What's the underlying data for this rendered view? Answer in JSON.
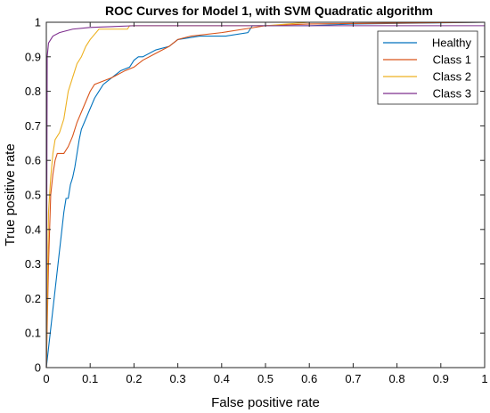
{
  "chart_data": {
    "type": "line",
    "title": "ROC Curves for Model 1, with SVM Quadratic algorithm",
    "xlabel": "False positive rate",
    "ylabel": "True positive rate",
    "xlim": [
      0,
      1
    ],
    "ylim": [
      0,
      1
    ],
    "x_ticks": [
      "0",
      "0.1",
      "0.2",
      "0.3",
      "0.4",
      "0.5",
      "0.6",
      "0.7",
      "0.8",
      "0.9",
      "1"
    ],
    "y_ticks": [
      "0",
      "0.1",
      "0.2",
      "0.3",
      "0.4",
      "0.5",
      "0.6",
      "0.7",
      "0.8",
      "0.9",
      "1"
    ],
    "grid": false,
    "legend_position": "top-right",
    "series": [
      {
        "name": "Healthy",
        "color": "#0072BD",
        "points": [
          [
            0,
            0
          ],
          [
            0.04,
            0.45
          ],
          [
            0.045,
            0.49
          ],
          [
            0.05,
            0.49
          ],
          [
            0.055,
            0.53
          ],
          [
            0.06,
            0.55
          ],
          [
            0.065,
            0.58
          ],
          [
            0.07,
            0.62
          ],
          [
            0.075,
            0.66
          ],
          [
            0.08,
            0.69
          ],
          [
            0.09,
            0.72
          ],
          [
            0.1,
            0.75
          ],
          [
            0.11,
            0.78
          ],
          [
            0.12,
            0.8
          ],
          [
            0.13,
            0.82
          ],
          [
            0.15,
            0.84
          ],
          [
            0.17,
            0.86
          ],
          [
            0.19,
            0.87
          ],
          [
            0.2,
            0.89
          ],
          [
            0.21,
            0.9
          ],
          [
            0.22,
            0.9
          ],
          [
            0.25,
            0.92
          ],
          [
            0.28,
            0.93
          ],
          [
            0.3,
            0.95
          ],
          [
            0.35,
            0.96
          ],
          [
            0.41,
            0.96
          ],
          [
            0.46,
            0.97
          ],
          [
            0.47,
            0.99
          ],
          [
            0.6,
            0.99
          ],
          [
            0.7,
            0.995
          ],
          [
            1,
            1
          ]
        ]
      },
      {
        "name": "Class 1",
        "color": "#D95319",
        "points": [
          [
            0,
            0
          ],
          [
            0.005,
            0.3
          ],
          [
            0.01,
            0.5
          ],
          [
            0.015,
            0.56
          ],
          [
            0.02,
            0.6
          ],
          [
            0.025,
            0.62
          ],
          [
            0.04,
            0.62
          ],
          [
            0.05,
            0.64
          ],
          [
            0.06,
            0.67
          ],
          [
            0.07,
            0.71
          ],
          [
            0.08,
            0.74
          ],
          [
            0.09,
            0.77
          ],
          [
            0.1,
            0.8
          ],
          [
            0.11,
            0.82
          ],
          [
            0.13,
            0.83
          ],
          [
            0.15,
            0.84
          ],
          [
            0.18,
            0.86
          ],
          [
            0.2,
            0.87
          ],
          [
            0.22,
            0.89
          ],
          [
            0.25,
            0.91
          ],
          [
            0.28,
            0.93
          ],
          [
            0.3,
            0.95
          ],
          [
            0.33,
            0.96
          ],
          [
            0.4,
            0.97
          ],
          [
            0.45,
            0.98
          ],
          [
            0.5,
            0.99
          ],
          [
            0.6,
            0.995
          ],
          [
            1,
            1
          ]
        ]
      },
      {
        "name": "Class 2",
        "color": "#EDB120",
        "points": [
          [
            0,
            0
          ],
          [
            0.005,
            0.45
          ],
          [
            0.01,
            0.55
          ],
          [
            0.015,
            0.62
          ],
          [
            0.02,
            0.66
          ],
          [
            0.03,
            0.68
          ],
          [
            0.04,
            0.72
          ],
          [
            0.05,
            0.8
          ],
          [
            0.06,
            0.84
          ],
          [
            0.07,
            0.88
          ],
          [
            0.08,
            0.9
          ],
          [
            0.09,
            0.93
          ],
          [
            0.1,
            0.95
          ],
          [
            0.12,
            0.98
          ],
          [
            0.15,
            0.98
          ],
          [
            0.185,
            0.98
          ],
          [
            0.19,
            0.99
          ],
          [
            0.5,
            0.99
          ],
          [
            0.6,
            1
          ],
          [
            1,
            1
          ]
        ]
      },
      {
        "name": "Class 3",
        "color": "#7E2F8E",
        "points": [
          [
            0,
            0
          ],
          [
            0.002,
            0.9
          ],
          [
            0.005,
            0.94
          ],
          [
            0.01,
            0.95
          ],
          [
            0.015,
            0.96
          ],
          [
            0.03,
            0.97
          ],
          [
            0.06,
            0.98
          ],
          [
            0.1,
            0.985
          ],
          [
            0.2,
            0.99
          ],
          [
            0.5,
            0.99
          ],
          [
            1,
            0.99
          ]
        ]
      }
    ]
  }
}
